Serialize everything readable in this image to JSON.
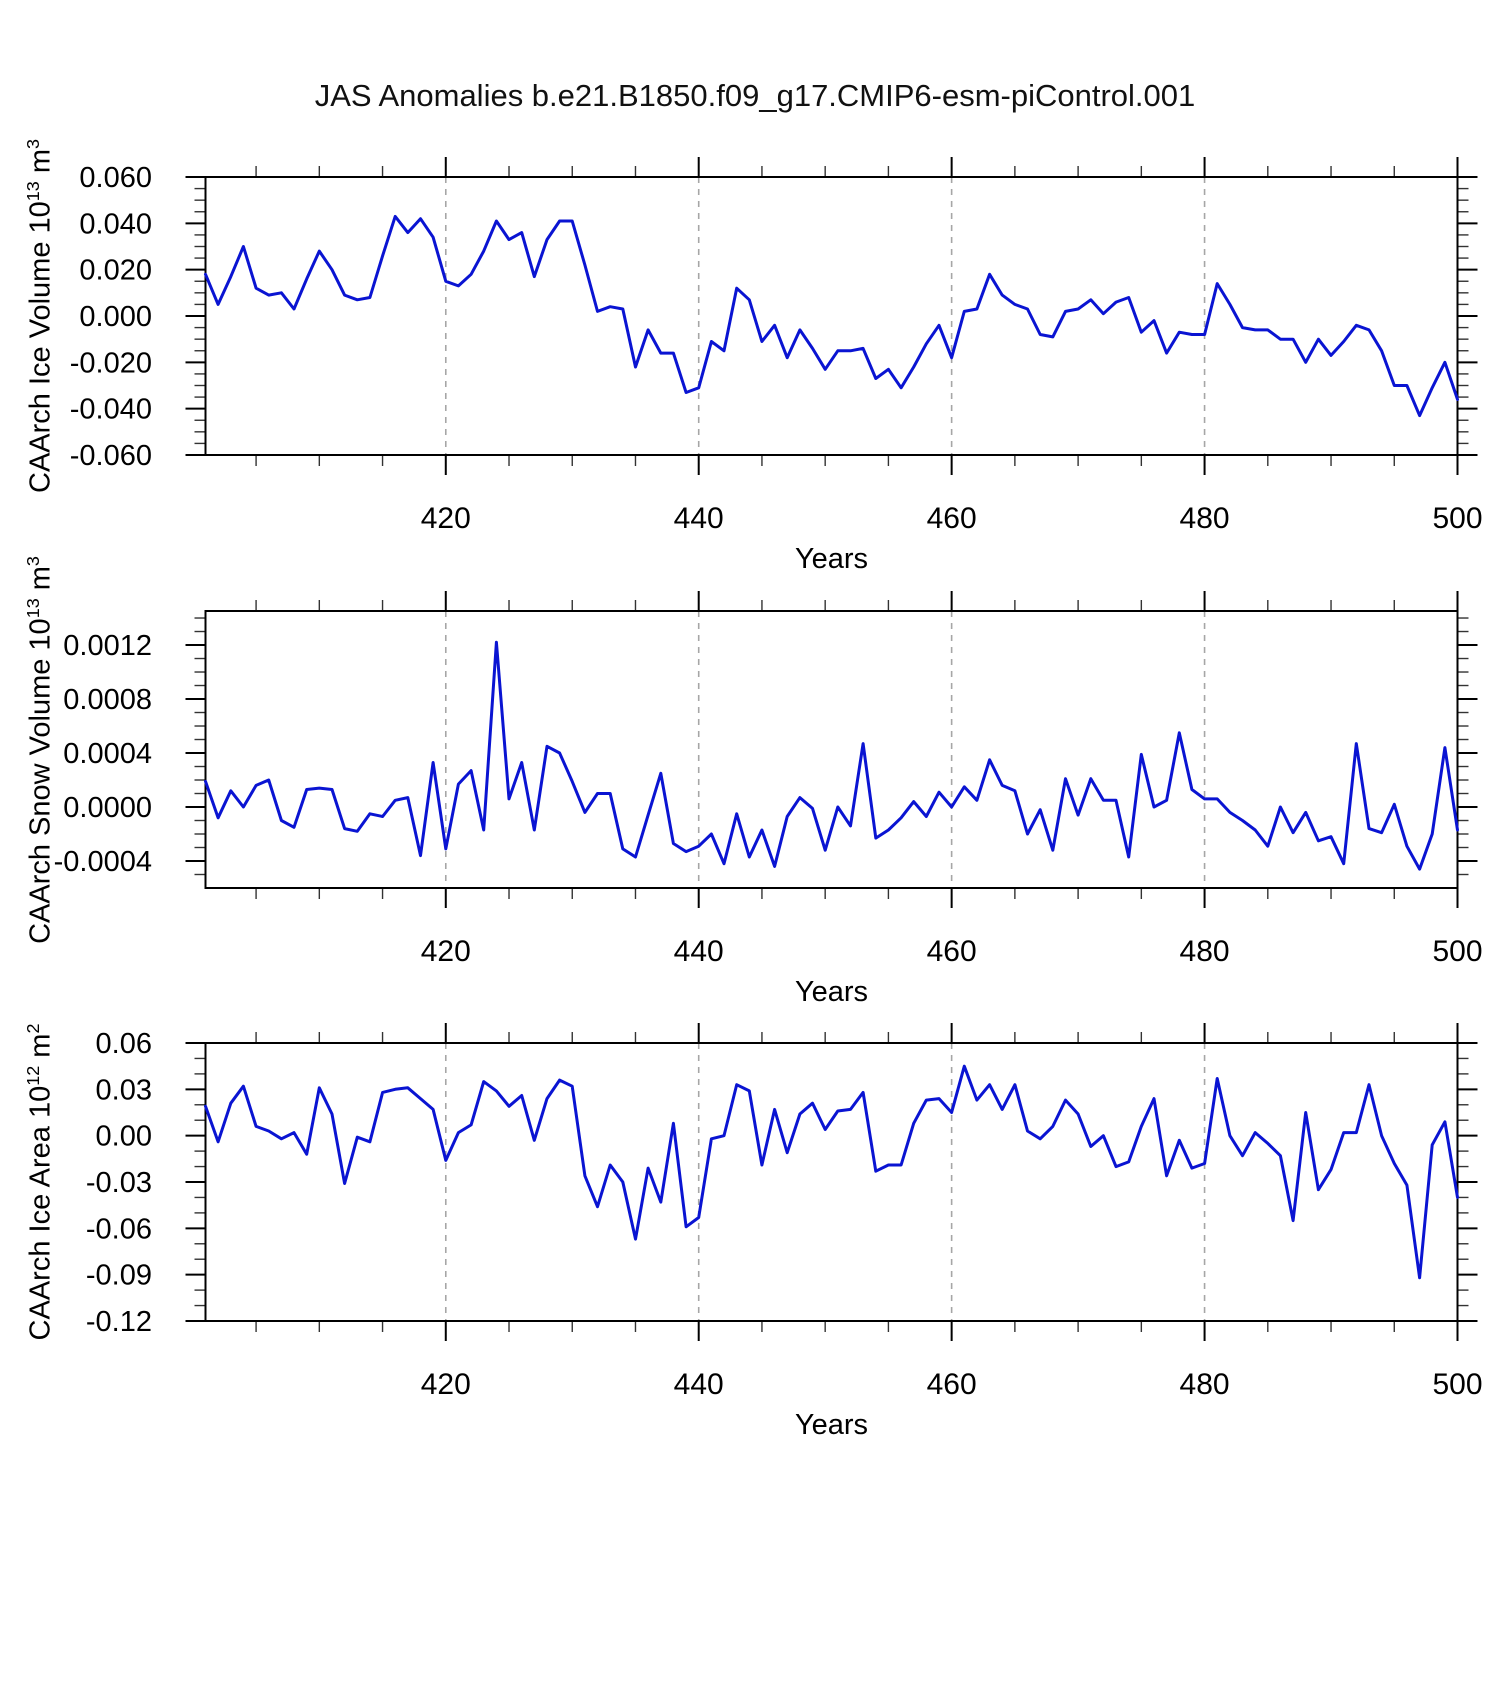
{
  "title": "JAS Anomalies b.e21.B1850.f09_g17.CMIP6-esm-piControl.001",
  "line_color": "#0a14d2",
  "gridline_color": "#a6a6a6",
  "chart_data": [
    {
      "type": "line",
      "title": "",
      "xlabel": "Years",
      "ylabel_segments": [
        {
          "t": "CAArch Ice Volume 10"
        },
        {
          "t": "13",
          "sup": true
        },
        {
          "t": " m",
          "sup": false
        },
        {
          "t": "3",
          "sup": true
        }
      ],
      "xlim": [
        401,
        500
      ],
      "ylim": [
        -0.06,
        0.06
      ],
      "xticks": [
        {
          "v": 420,
          "label": "420"
        },
        {
          "v": 440,
          "label": "440"
        },
        {
          "v": 460,
          "label": "460"
        },
        {
          "v": 480,
          "label": "480"
        },
        {
          "v": 500,
          "label": "500"
        }
      ],
      "yticks": [
        {
          "v": 0.06,
          "label": "0.060"
        },
        {
          "v": 0.04,
          "label": "0.040"
        },
        {
          "v": 0.02,
          "label": "0.020"
        },
        {
          "v": 0.0,
          "label": "0.000"
        },
        {
          "v": -0.02,
          "label": "-0.020"
        },
        {
          "v": -0.04,
          "label": "-0.040"
        },
        {
          "v": -0.06,
          "label": "-0.060"
        }
      ],
      "xminor_step": 5,
      "yminor_step": 0.005,
      "gridlines_x": [
        420,
        440,
        460,
        480
      ],
      "grid": "dashed-vertical",
      "legend": "none",
      "x_start": 401,
      "x_step": 1,
      "values": [
        0.018,
        0.005,
        0.017,
        0.03,
        0.012,
        0.009,
        0.01,
        0.003,
        0.016,
        0.028,
        0.02,
        0.009,
        0.007,
        0.008,
        0.026,
        0.043,
        0.036,
        0.042,
        0.034,
        0.015,
        0.013,
        0.018,
        0.028,
        0.041,
        0.033,
        0.036,
        0.017,
        0.033,
        0.041,
        0.041,
        0.022,
        0.002,
        0.004,
        0.003,
        -0.022,
        -0.006,
        -0.016,
        -0.016,
        -0.033,
        -0.031,
        -0.011,
        -0.015,
        0.012,
        0.007,
        -0.011,
        -0.004,
        -0.018,
        -0.006,
        -0.014,
        -0.023,
        -0.015,
        -0.015,
        -0.014,
        -0.027,
        -0.023,
        -0.031,
        -0.022,
        -0.012,
        -0.004,
        -0.018,
        0.002,
        0.003,
        0.018,
        0.009,
        0.005,
        0.003,
        -0.008,
        -0.009,
        0.002,
        0.003,
        0.007,
        0.001,
        0.006,
        0.008,
        -0.007,
        -0.002,
        -0.016,
        -0.007,
        -0.008,
        -0.008,
        0.014,
        0.005,
        -0.005,
        -0.006,
        -0.006,
        -0.01,
        -0.01,
        -0.02,
        -0.01,
        -0.017,
        -0.011,
        -0.004,
        -0.006,
        -0.015,
        -0.03,
        -0.03,
        -0.043,
        -0.031,
        -0.02,
        -0.036
      ]
    },
    {
      "type": "line",
      "title": "",
      "xlabel": "Years",
      "ylabel_segments": [
        {
          "t": "CAArch Snow Volume 10"
        },
        {
          "t": "13",
          "sup": true
        },
        {
          "t": " m",
          "sup": false
        },
        {
          "t": "3",
          "sup": true
        }
      ],
      "xlim": [
        401,
        500
      ],
      "ylim": [
        -0.0006,
        0.001452
      ],
      "xticks": [
        {
          "v": 420,
          "label": "420"
        },
        {
          "v": 440,
          "label": "440"
        },
        {
          "v": 460,
          "label": "460"
        },
        {
          "v": 480,
          "label": "480"
        },
        {
          "v": 500,
          "label": "500"
        }
      ],
      "yticks": [
        {
          "v": 0.0012,
          "label": "0.0012"
        },
        {
          "v": 0.0008,
          "label": "0.0008"
        },
        {
          "v": 0.0004,
          "label": "0.0004"
        },
        {
          "v": 0.0,
          "label": "0.0000"
        },
        {
          "v": -0.0004,
          "label": "-0.0004"
        }
      ],
      "xminor_step": 5,
      "yminor_step": 0.0001,
      "gridlines_x": [
        420,
        440,
        460,
        480
      ],
      "grid": "dashed-vertical",
      "legend": "none",
      "x_start": 401,
      "x_step": 1,
      "values": [
        0.00019,
        -8e-05,
        0.00012,
        0.0,
        0.00016,
        0.0002,
        -0.0001,
        -0.00015,
        0.00013,
        0.00014,
        0.00013,
        -0.00016,
        -0.00018,
        -5e-05,
        -7e-05,
        5e-05,
        7e-05,
        -0.00036,
        0.00033,
        -0.00031,
        0.00017,
        0.00027,
        -0.00017,
        0.00122,
        6e-05,
        0.00033,
        -0.00017,
        0.00045,
        0.0004,
        0.00019,
        -4e-05,
        0.0001,
        0.0001,
        -0.00031,
        -0.00037,
        -6e-05,
        0.00025,
        -0.00027,
        -0.00033,
        -0.00029,
        -0.0002,
        -0.00042,
        -5e-05,
        -0.00037,
        -0.00017,
        -0.00044,
        -7e-05,
        7e-05,
        -1e-05,
        -0.00032,
        0.0,
        -0.00014,
        0.00047,
        -0.00023,
        -0.00017,
        -8e-05,
        4e-05,
        -7e-05,
        0.00011,
        0.0,
        0.00015,
        5e-05,
        0.00035,
        0.00016,
        0.00012,
        -0.0002,
        -2e-05,
        -0.00032,
        0.00021,
        -6e-05,
        0.00021,
        5e-05,
        5e-05,
        -0.00037,
        0.00039,
        0.0,
        5e-05,
        0.00055,
        0.00013,
        6e-05,
        6e-05,
        -4e-05,
        -0.0001,
        -0.00017,
        -0.00029,
        0.0,
        -0.00019,
        -4e-05,
        -0.00025,
        -0.00022,
        -0.00042,
        0.00047,
        -0.00016,
        -0.00019,
        2e-05,
        -0.00029,
        -0.00046,
        -0.0002,
        0.00044,
        -0.00017
      ]
    },
    {
      "type": "line",
      "title": "",
      "xlabel": "Years",
      "ylabel_segments": [
        {
          "t": "CAArch Ice Area 10"
        },
        {
          "t": "12",
          "sup": true
        },
        {
          "t": " m",
          "sup": false
        },
        {
          "t": "2",
          "sup": true
        }
      ],
      "xlim": [
        401,
        500
      ],
      "ylim": [
        -0.12,
        0.06
      ],
      "xticks": [
        {
          "v": 420,
          "label": "420"
        },
        {
          "v": 440,
          "label": "440"
        },
        {
          "v": 460,
          "label": "460"
        },
        {
          "v": 480,
          "label": "480"
        },
        {
          "v": 500,
          "label": "500"
        }
      ],
      "yticks": [
        {
          "v": 0.06,
          "label": "0.06"
        },
        {
          "v": 0.03,
          "label": "0.03"
        },
        {
          "v": 0.0,
          "label": "0.00"
        },
        {
          "v": -0.03,
          "label": "-0.03"
        },
        {
          "v": -0.06,
          "label": "-0.06"
        },
        {
          "v": -0.09,
          "label": "-0.09"
        },
        {
          "v": -0.12,
          "label": "-0.12"
        }
      ],
      "xminor_step": 5,
      "yminor_step": 0.01,
      "gridlines_x": [
        420,
        440,
        460,
        480
      ],
      "grid": "dashed-vertical",
      "legend": "none",
      "x_start": 401,
      "x_step": 1,
      "values": [
        0.019,
        -0.004,
        0.021,
        0.032,
        0.006,
        0.003,
        -0.002,
        0.002,
        -0.012,
        0.031,
        0.014,
        -0.031,
        -0.001,
        -0.004,
        0.028,
        0.03,
        0.031,
        0.024,
        0.017,
        -0.016,
        0.002,
        0.007,
        0.035,
        0.029,
        0.019,
        0.026,
        -0.003,
        0.024,
        0.036,
        0.032,
        -0.026,
        -0.046,
        -0.019,
        -0.03,
        -0.067,
        -0.021,
        -0.043,
        0.008,
        -0.059,
        -0.053,
        -0.002,
        0.0,
        0.033,
        0.029,
        -0.019,
        0.017,
        -0.011,
        0.014,
        0.021,
        0.004,
        0.016,
        0.017,
        0.028,
        -0.023,
        -0.019,
        -0.019,
        0.008,
        0.023,
        0.024,
        0.015,
        0.045,
        0.023,
        0.033,
        0.017,
        0.033,
        0.003,
        -0.002,
        0.006,
        0.023,
        0.014,
        -0.007,
        0.0,
        -0.02,
        -0.017,
        0.006,
        0.024,
        -0.026,
        -0.003,
        -0.021,
        -0.018,
        0.037,
        0.0,
        -0.013,
        0.002,
        -0.005,
        -0.013,
        -0.055,
        0.015,
        -0.035,
        -0.022,
        0.002,
        0.002,
        0.033,
        0.0,
        -0.018,
        -0.032,
        -0.092,
        -0.006,
        0.009,
        -0.04
      ]
    }
  ]
}
